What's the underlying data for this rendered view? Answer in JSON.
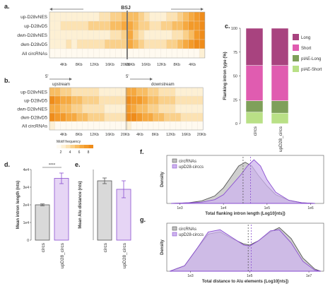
{
  "panel_labels": {
    "a": "a.",
    "b": "b.",
    "c": "c.",
    "d": "d.",
    "e": "e.",
    "f": "f.",
    "g": "g."
  },
  "heatmap_rows": [
    "up-D28vNES",
    "up-D28vD5",
    "dwn-D28vNES",
    "dwn-D28vD5",
    "All circRNAs"
  ],
  "heat_a": {
    "bsj_label": "BSJ",
    "ticks_left": [
      "4Kb",
      "8Kb",
      "12Kb",
      "16Kb",
      "20Kb"
    ],
    "ticks_right": [
      "20Kb",
      "16Kb",
      "12Kb",
      "8Kb",
      "4Kb"
    ],
    "values": [
      [
        1,
        1,
        1,
        1,
        1,
        1,
        1,
        1,
        1,
        2,
        2,
        3,
        3,
        4,
        4,
        4,
        3,
        2,
        1,
        1,
        1,
        2,
        2,
        3,
        4,
        5,
        6,
        7
      ],
      [
        1,
        1,
        2,
        2,
        2,
        2,
        2,
        3,
        3,
        3,
        3,
        4,
        4,
        5,
        5,
        4,
        3,
        3,
        2,
        2,
        3,
        3,
        4,
        4,
        5,
        6,
        6,
        7
      ],
      [
        1,
        1,
        1,
        1,
        1,
        1,
        1,
        1,
        1,
        1,
        1,
        2,
        2,
        3,
        5,
        3,
        2,
        1,
        1,
        1,
        1,
        1,
        2,
        2,
        3,
        4,
        6,
        7
      ],
      [
        1,
        1,
        1,
        2,
        1,
        2,
        2,
        2,
        2,
        2,
        3,
        3,
        3,
        3,
        5,
        4,
        3,
        2,
        2,
        2,
        2,
        3,
        3,
        4,
        5,
        6,
        7,
        7
      ],
      [
        0,
        0,
        0,
        0,
        0,
        0,
        0,
        0,
        0,
        0,
        0,
        0,
        0,
        0,
        0,
        0,
        0,
        0,
        0,
        0,
        0,
        0,
        0,
        0,
        0,
        0,
        0,
        1
      ]
    ]
  },
  "heat_b": {
    "upstream_label": "upstream",
    "downstream_label": "downstream",
    "five_prime_label": "5'",
    "ticks": [
      "4Kb",
      "8Kb",
      "12Kb",
      "16Kb",
      "20Kb"
    ],
    "values_up": [
      [
        4,
        4,
        3,
        3,
        2,
        2,
        2,
        2,
        2,
        1,
        1,
        1,
        1,
        1
      ],
      [
        7,
        6,
        5,
        5,
        4,
        4,
        3,
        3,
        3,
        2,
        2,
        2,
        2,
        2
      ],
      [
        5,
        5,
        4,
        4,
        3,
        3,
        2,
        2,
        2,
        2,
        1,
        1,
        1,
        1
      ],
      [
        7,
        6,
        6,
        5,
        5,
        4,
        4,
        3,
        3,
        3,
        2,
        2,
        2,
        2
      ],
      [
        1,
        0,
        0,
        0,
        0,
        0,
        0,
        0,
        0,
        0,
        0,
        0,
        0,
        0
      ]
    ],
    "values_down": [
      [
        5,
        5,
        4,
        4,
        3,
        3,
        2,
        2,
        2,
        1,
        1,
        1,
        1,
        1
      ],
      [
        7,
        6,
        6,
        5,
        4,
        4,
        3,
        3,
        3,
        2,
        2,
        2,
        2,
        2
      ],
      [
        6,
        5,
        4,
        4,
        3,
        3,
        2,
        2,
        2,
        1,
        1,
        1,
        1,
        1
      ],
      [
        7,
        7,
        6,
        5,
        5,
        4,
        4,
        3,
        3,
        3,
        2,
        2,
        2,
        2
      ],
      [
        1,
        0,
        0,
        0,
        0,
        0,
        0,
        0,
        0,
        0,
        0,
        0,
        0,
        0
      ]
    ],
    "colorbar_title": "Motif frequency",
    "colorbar_ticks": [
      "2",
      "4",
      "6",
      "8"
    ]
  },
  "chart_data": [
    {
      "id": "c",
      "type": "bar",
      "stacked": true,
      "categories": [
        "circs",
        "upD28_circs"
      ],
      "ylabel": "Flanking intron type (%)",
      "ylim": [
        0,
        100
      ],
      "yticks": [
        "0",
        "25",
        "50",
        "75",
        "100"
      ],
      "series": [
        {
          "name": "pIAE-Short",
          "color": "#b9e086",
          "values": [
            12,
            11
          ]
        },
        {
          "name": "pIAE-Long",
          "color": "#7fa05a",
          "values": [
            12,
            13
          ]
        },
        {
          "name": "Short",
          "color": "#e05cb0",
          "values": [
            37,
            37
          ]
        },
        {
          "name": "Long",
          "color": "#a8437f",
          "values": [
            39,
            39
          ]
        }
      ],
      "legend": [
        "Long",
        "Short",
        "pIAE-Long",
        "pIAE-Short"
      ]
    },
    {
      "id": "d",
      "type": "bar",
      "categories": [
        "circs",
        "upD28_circs"
      ],
      "values": [
        20000,
        35000
      ],
      "errors": [
        500,
        3000
      ],
      "colors": [
        "#d9d9d9",
        "#e6d5f5"
      ],
      "edge_colors": [
        "#555555",
        "#8a4fd0"
      ],
      "ylabel": "Mean intron length (nts)",
      "ylim": [
        0,
        40000
      ],
      "yticks": [
        "0",
        "1e4",
        "2e4",
        "3e4",
        "4e4"
      ],
      "significance": "****"
    },
    {
      "id": "e",
      "type": "bar",
      "categories": [
        "circs",
        "upD28_circs"
      ],
      "values": [
        42000,
        36000
      ],
      "errors": [
        2000,
        6000
      ],
      "colors": [
        "#d9d9d9",
        "#e6d5f5"
      ],
      "edge_colors": [
        "#555555",
        "#8a4fd0"
      ],
      "ylabel": "Mean Alu distance (nts)",
      "ylim": [
        0,
        50000
      ]
    },
    {
      "id": "f",
      "type": "area",
      "xlabel": "Total flanking intron length (Log10[nts])",
      "ylabel": "Density",
      "xlim": [
        2.7,
        6.3
      ],
      "xticks": [
        {
          "v": 3,
          "label": "1e3"
        },
        {
          "v": 4,
          "label": "1e4"
        },
        {
          "v": 5,
          "label": "1e5"
        },
        {
          "v": 6,
          "label": "1e6"
        }
      ],
      "series": [
        {
          "name": "circRNAs",
          "color": "#555555",
          "fill": "#bfbfbf",
          "mean": 4.45,
          "x": [
            2.8,
            3.2,
            3.5,
            3.8,
            4.0,
            4.2,
            4.35,
            4.5,
            4.65,
            4.8,
            5.0,
            5.2,
            5.5,
            5.8,
            6.1
          ],
          "y": [
            0,
            0.01,
            0.04,
            0.12,
            0.25,
            0.45,
            0.6,
            0.66,
            0.6,
            0.45,
            0.28,
            0.14,
            0.05,
            0.01,
            0
          ]
        },
        {
          "name": "upD28-circcs",
          "color": "#8a4fd0",
          "fill": "#cdb4ee",
          "mean": 4.62,
          "x": [
            2.8,
            3.2,
            3.5,
            3.8,
            4.0,
            4.2,
            4.4,
            4.55,
            4.7,
            4.85,
            5.0,
            5.2,
            5.5,
            5.8,
            6.1
          ],
          "y": [
            0,
            0.01,
            0.02,
            0.06,
            0.14,
            0.3,
            0.46,
            0.6,
            0.7,
            0.6,
            0.38,
            0.18,
            0.05,
            0.01,
            0
          ]
        }
      ]
    },
    {
      "id": "g",
      "type": "area",
      "xlabel": "Total distance to Alu elements (Log10[nts])",
      "ylabel": "Density",
      "xlim": [
        2.2,
        7.5
      ],
      "xticks": [
        {
          "v": 3,
          "label": "1e3"
        },
        {
          "v": 5,
          "label": "1e5"
        },
        {
          "v": 7,
          "label": "1e7"
        }
      ],
      "series": [
        {
          "name": "circRNAs",
          "color": "#555555",
          "fill": "#bfbfbf",
          "mean": 4.95,
          "x": [
            2.3,
            2.8,
            3.2,
            3.6,
            4.0,
            4.4,
            4.8,
            5.0,
            5.3,
            5.7,
            6.0,
            6.4,
            6.8,
            7.2,
            7.4
          ],
          "y": [
            0,
            0.05,
            0.2,
            0.34,
            0.36,
            0.3,
            0.25,
            0.24,
            0.28,
            0.36,
            0.4,
            0.3,
            0.12,
            0.02,
            0
          ]
        },
        {
          "name": "upD28-circcs",
          "color": "#8a4fd0",
          "fill": "#cdb4ee",
          "mean": 5.05,
          "x": [
            2.3,
            2.8,
            3.2,
            3.6,
            4.0,
            4.4,
            4.8,
            5.0,
            5.3,
            5.7,
            6.0,
            6.4,
            6.8,
            7.2,
            7.4
          ],
          "y": [
            0,
            0.05,
            0.2,
            0.36,
            0.38,
            0.31,
            0.24,
            0.23,
            0.28,
            0.37,
            0.38,
            0.26,
            0.09,
            0.01,
            0
          ]
        }
      ]
    }
  ]
}
